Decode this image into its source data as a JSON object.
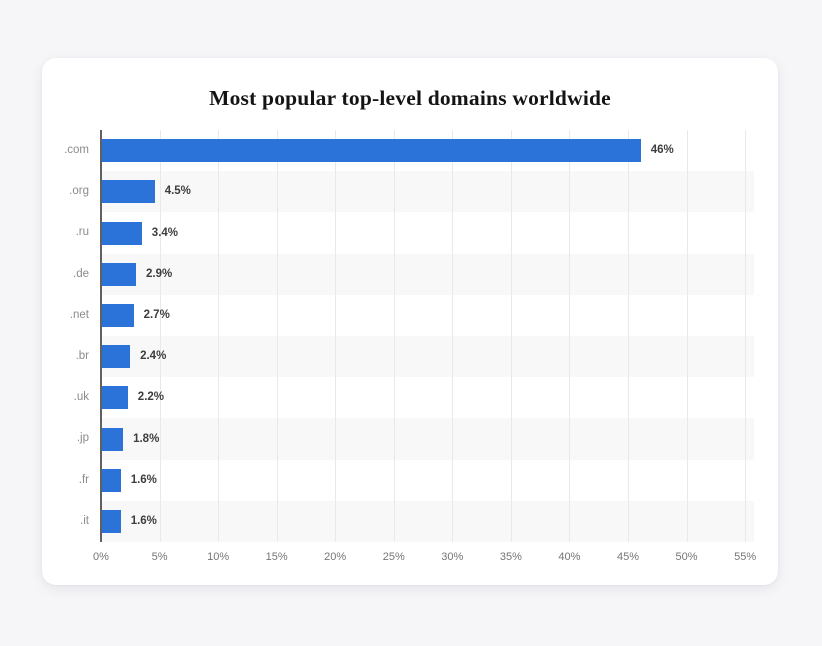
{
  "page": {
    "background_color": "#f6f6f9"
  },
  "card": {
    "background_color": "#ffffff"
  },
  "chart_data": {
    "type": "bar",
    "orientation": "horizontal",
    "title": "Most popular top-level domains worldwide",
    "categories": [
      ".com",
      ".org",
      ".ru",
      ".de",
      ".net",
      ".br",
      ".uk",
      ".jp",
      ".fr",
      ".it"
    ],
    "values": [
      46,
      4.5,
      3.4,
      2.9,
      2.7,
      2.4,
      2.2,
      1.8,
      1.6,
      1.6
    ],
    "value_labels": [
      "46%",
      "4.5%",
      "3.4%",
      "2.9%",
      "2.7%",
      "2.4%",
      "2.2%",
      "1.8%",
      "1.6%",
      "1.6%"
    ],
    "xlabel": "",
    "ylabel": "",
    "xlim": [
      0,
      55
    ],
    "x_tick_step": 5,
    "x_tick_labels": [
      "0%",
      "5%",
      "10%",
      "15%",
      "20%",
      "25%",
      "30%",
      "35%",
      "40%",
      "45%",
      "50%",
      "55%"
    ],
    "grid": true,
    "legend": false,
    "row_striping": "alternate",
    "colors": {
      "bar": "#2b72d9",
      "row_stripe": "#f8f8f8",
      "gridline": "#e9e9e9",
      "axis_line": "#606060",
      "category_label": "#8b8b8b",
      "value_label": "#3d3d3d",
      "tick_label": "#757575"
    }
  }
}
